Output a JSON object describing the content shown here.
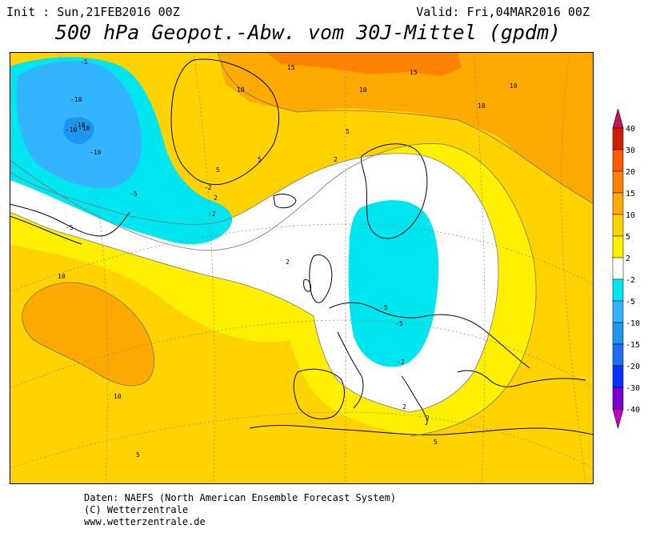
{
  "header": {
    "init": "Init : Sun,21FEB2016 00Z",
    "valid": "Valid: Fri,04MAR2016 00Z",
    "title": "500 hPa Geopot.-Abw. vom 30J-Mittel (gpdm)"
  },
  "footer": {
    "line1": "Daten: NAEFS (North American Ensemble Forecast System)",
    "line2": "(C) Wetterzentrale",
    "line3": "www.wetterzentrale.de"
  },
  "colors": {
    "lt_neg40": "#c800c8",
    "neg40_neg30": "#7a00d0",
    "neg30_neg20": "#0032ff",
    "neg20_neg15": "#1e6ef0",
    "neg15_neg10": "#1e96f0",
    "neg10_neg5": "#32b4ff",
    "neg5_neg2": "#00e6f0",
    "neg2_2": "#ffffff",
    "2_5": "#fff000",
    "5_10": "#ffd200",
    "10_15": "#ffaa00",
    "15_20": "#ff8200",
    "20_30": "#ff5a00",
    "30_40": "#d21e00",
    "gt_40": "#c8145a"
  },
  "legend": {
    "labels": [
      "40",
      "30",
      "20",
      "15",
      "10",
      "5",
      "2",
      "-2",
      "-5",
      "-10",
      "-15",
      "-20",
      "-30",
      "-40"
    ]
  },
  "map": {
    "contour_labels": [
      {
        "text": "-5"
      },
      {
        "text": "-10"
      },
      {
        "text": "-10"
      },
      {
        "text": "-10"
      },
      {
        "text": "-10"
      },
      {
        "text": "-10"
      },
      {
        "text": "-5"
      },
      {
        "text": "-2"
      },
      {
        "text": "-2"
      },
      {
        "text": "-5"
      },
      {
        "text": "-5"
      },
      {
        "text": "-5"
      },
      {
        "text": "-2"
      },
      {
        "text": "2"
      },
      {
        "text": "2"
      },
      {
        "text": "2"
      },
      {
        "text": "2"
      },
      {
        "text": "2"
      },
      {
        "text": "5"
      },
      {
        "text": "5"
      },
      {
        "text": "5"
      },
      {
        "text": "5"
      },
      {
        "text": "5"
      },
      {
        "text": "10"
      },
      {
        "text": "10"
      },
      {
        "text": "10"
      },
      {
        "text": "10"
      },
      {
        "text": "10"
      },
      {
        "text": "10"
      },
      {
        "text": "15"
      },
      {
        "text": "15"
      }
    ]
  }
}
